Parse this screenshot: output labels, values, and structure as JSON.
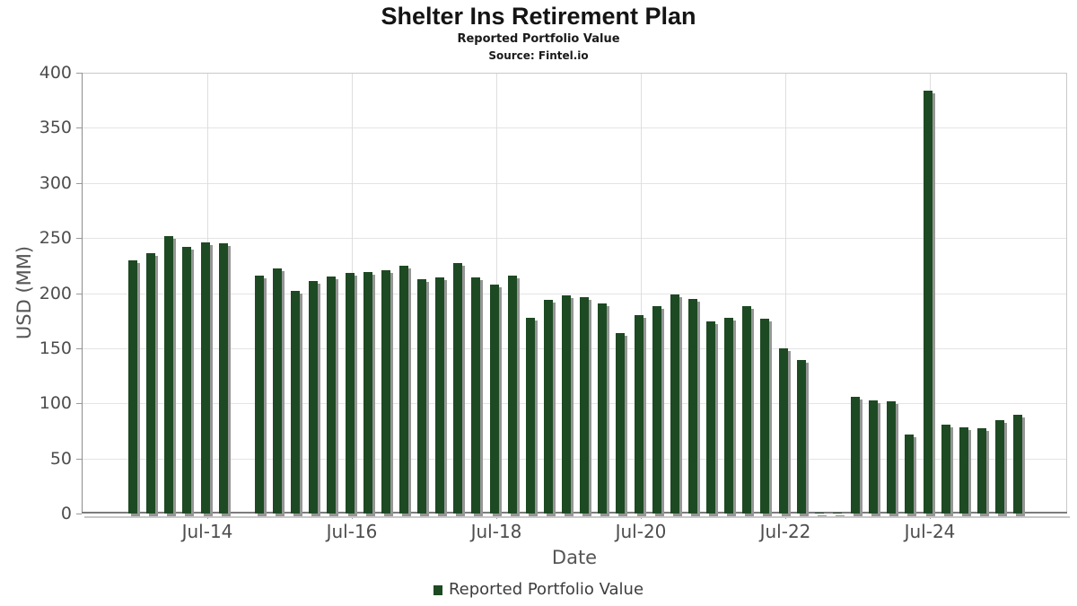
{
  "chart_data": {
    "type": "bar",
    "title": "Shelter Ins Retirement Plan",
    "subtitle": "Reported Portfolio Value",
    "source_line": "Source: Fintel.io",
    "xlabel": "Date",
    "ylabel": "USD (MM)",
    "ylim": [
      0,
      400
    ],
    "y_ticks": [
      0,
      50,
      100,
      150,
      200,
      250,
      300,
      350,
      400
    ],
    "x_tick_labels": [
      "Jul-14",
      "Jul-16",
      "Jul-18",
      "Jul-20",
      "Jul-22",
      "Jul-24"
    ],
    "grid": true,
    "legend_position": "bottom-center",
    "bar_color": "#1d4a23",
    "bar_shadow_color": "#969696",
    "legend": [
      {
        "label": "Reported Portfolio Value",
        "color": "#1d4a23"
      }
    ],
    "categories": [
      "Jun-13",
      "Sep-13",
      "Dec-13",
      "Mar-14",
      "Jun-14",
      "Sep-14",
      "Dec-14",
      "Mar-15",
      "Jun-15",
      "Sep-15",
      "Dec-15",
      "Mar-16",
      "Jun-16",
      "Sep-16",
      "Dec-16",
      "Mar-17",
      "Jun-17",
      "Sep-17",
      "Dec-17",
      "Mar-18",
      "Jun-18",
      "Sep-18",
      "Dec-18",
      "Mar-19",
      "Jun-19",
      "Sep-19",
      "Dec-19",
      "Mar-20",
      "Jun-20",
      "Sep-20",
      "Dec-20",
      "Mar-21",
      "Jun-21",
      "Sep-21",
      "Dec-21",
      "Mar-22",
      "Jun-22",
      "Sep-22",
      "Dec-22",
      "Mar-23",
      "Jun-23",
      "Sep-23",
      "Dec-23",
      "Mar-24",
      "Jun-24",
      "Sep-24",
      "Dec-24",
      "Mar-25",
      "Jun-25",
      "Sep-25"
    ],
    "values": [
      230,
      236,
      252,
      242,
      246,
      245,
      null,
      216,
      222,
      202,
      211,
      215,
      218,
      219,
      221,
      225,
      213,
      214,
      227,
      214,
      208,
      216,
      178,
      194,
      198,
      196,
      191,
      164,
      180,
      188,
      199,
      195,
      174,
      178,
      188,
      177,
      150,
      139,
      1,
      1,
      106,
      103,
      102,
      72,
      384,
      81,
      78,
      77,
      85,
      90
    ]
  }
}
